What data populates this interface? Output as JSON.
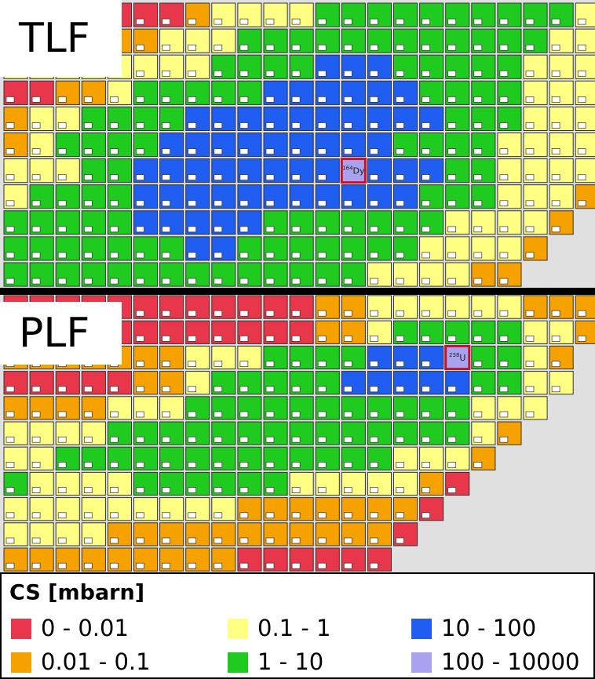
{
  "chart_data": {
    "type": "category-grid",
    "panels": [
      {
        "label": "TLF",
        "highlight_label": {
          "mass": "164",
          "symbol": "Dy"
        },
        "rows": [
          [
            0,
            0,
            0,
            0,
            0,
            0,
            0,
            1,
            2,
            2,
            2,
            2,
            3,
            3,
            3,
            3,
            3,
            3,
            3,
            3,
            3,
            3,
            2
          ],
          [
            1,
            1,
            1,
            1,
            1,
            1,
            2,
            2,
            2,
            3,
            3,
            3,
            3,
            3,
            3,
            3,
            3,
            3,
            3,
            3,
            3,
            2,
            2
          ],
          [
            2,
            2,
            2,
            2,
            2,
            2,
            2,
            2,
            3,
            3,
            3,
            3,
            4,
            4,
            4,
            3,
            3,
            3,
            3,
            3,
            2,
            2,
            2
          ],
          [
            0,
            0,
            1,
            1,
            2,
            3,
            3,
            3,
            3,
            3,
            4,
            4,
            4,
            4,
            4,
            4,
            3,
            3,
            3,
            3,
            2,
            2,
            2
          ],
          [
            1,
            2,
            2,
            3,
            3,
            3,
            3,
            4,
            4,
            4,
            4,
            4,
            4,
            4,
            4,
            4,
            4,
            3,
            3,
            3,
            2,
            2,
            2
          ],
          [
            1,
            2,
            3,
            3,
            3,
            3,
            4,
            4,
            4,
            4,
            4,
            4,
            4,
            4,
            4,
            3,
            3,
            3,
            3,
            2,
            2,
            2,
            2
          ],
          [
            2,
            2,
            2,
            3,
            3,
            4,
            4,
            4,
            4,
            4,
            4,
            4,
            4,
            5,
            4,
            4,
            4,
            3,
            3,
            2,
            2,
            2,
            2
          ],
          [
            2,
            3,
            3,
            3,
            3,
            4,
            4,
            4,
            4,
            4,
            4,
            4,
            4,
            4,
            4,
            4,
            3,
            3,
            3,
            2,
            2,
            2,
            1
          ],
          [
            3,
            3,
            3,
            3,
            3,
            4,
            4,
            4,
            4,
            4,
            3,
            3,
            3,
            3,
            3,
            3,
            3,
            2,
            2,
            2,
            2,
            1,
            null
          ],
          [
            3,
            3,
            3,
            3,
            3,
            3,
            3,
            4,
            4,
            3,
            3,
            3,
            3,
            3,
            3,
            3,
            2,
            2,
            2,
            2,
            1,
            null,
            null
          ],
          [
            3,
            3,
            3,
            3,
            3,
            3,
            3,
            3,
            3,
            3,
            3,
            3,
            3,
            3,
            2,
            2,
            2,
            2,
            1,
            1,
            null,
            null,
            null
          ]
        ]
      },
      {
        "label": "PLF",
        "highlight_label": {
          "mass": "238",
          "symbol": "U"
        },
        "rows": [
          [
            0,
            0,
            0,
            0,
            0,
            0,
            0,
            0,
            0,
            0,
            0,
            0,
            1,
            1,
            2,
            2,
            2,
            2,
            2,
            2,
            1,
            1,
            1
          ],
          [
            0,
            0,
            0,
            0,
            0,
            0,
            0,
            0,
            0,
            0,
            0,
            0,
            1,
            1,
            2,
            3,
            3,
            3,
            3,
            3,
            2,
            2,
            1
          ],
          [
            1,
            1,
            1,
            1,
            1,
            1,
            1,
            2,
            2,
            2,
            3,
            3,
            3,
            3,
            4,
            4,
            4,
            5,
            3,
            3,
            2,
            1,
            null
          ],
          [
            0,
            0,
            0,
            0,
            0,
            1,
            1,
            2,
            3,
            3,
            3,
            3,
            3,
            4,
            4,
            4,
            4,
            4,
            3,
            3,
            2,
            2,
            null
          ],
          [
            1,
            1,
            1,
            1,
            2,
            2,
            2,
            3,
            3,
            3,
            3,
            3,
            3,
            3,
            3,
            3,
            3,
            3,
            2,
            2,
            2,
            null,
            null
          ],
          [
            2,
            2,
            2,
            2,
            3,
            3,
            3,
            3,
            3,
            3,
            3,
            3,
            3,
            3,
            3,
            3,
            3,
            3,
            2,
            1,
            null,
            null,
            null
          ],
          [
            2,
            2,
            3,
            3,
            3,
            3,
            3,
            3,
            3,
            3,
            3,
            3,
            3,
            3,
            3,
            2,
            2,
            2,
            1,
            null,
            null,
            null,
            null
          ],
          [
            3,
            2,
            2,
            2,
            2,
            3,
            3,
            3,
            3,
            3,
            3,
            2,
            2,
            2,
            2,
            2,
            1,
            0,
            null,
            null,
            null,
            null,
            null
          ],
          [
            2,
            2,
            2,
            2,
            2,
            2,
            2,
            2,
            2,
            1,
            1,
            1,
            1,
            1,
            1,
            1,
            0,
            null,
            null,
            null,
            null,
            null,
            null
          ],
          [
            2,
            2,
            2,
            2,
            1,
            1,
            1,
            1,
            1,
            1,
            1,
            1,
            1,
            1,
            1,
            0,
            null,
            null,
            null,
            null,
            null,
            null,
            null
          ],
          [
            1,
            1,
            1,
            1,
            1,
            1,
            1,
            1,
            1,
            0,
            0,
            0,
            0,
            0,
            0,
            null,
            null,
            null,
            null,
            null,
            null,
            null,
            null
          ]
        ]
      }
    ],
    "legend_title": "CS [mbarn]",
    "legend": [
      {
        "label": "0 - 0.01",
        "color": "#e8374a"
      },
      {
        "label": "0.01 - 0.1",
        "color": "#f5a100"
      },
      {
        "label": "0.1 - 1",
        "color": "#ffff84"
      },
      {
        "label": "1 - 10",
        "color": "#1ecb1e"
      },
      {
        "label": "10 - 100",
        "color": "#1f5ef0"
      },
      {
        "label": "100 - 10000",
        "color": "#a9a2ee"
      }
    ]
  }
}
